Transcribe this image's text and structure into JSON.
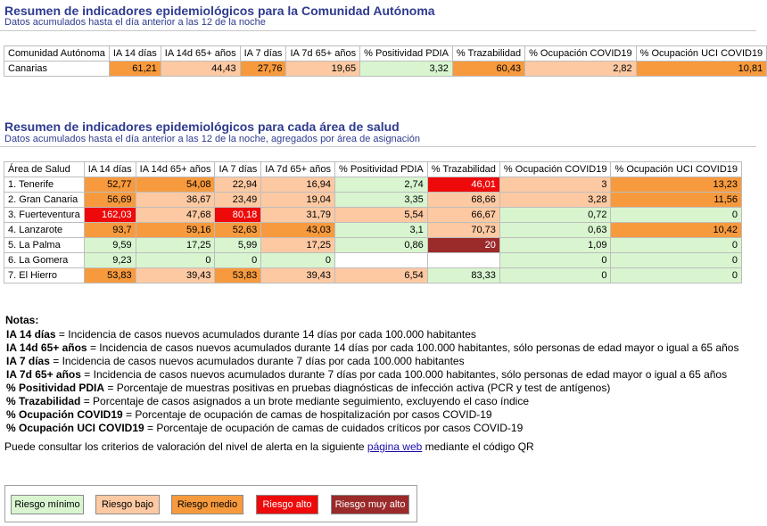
{
  "section1": {
    "title": "Resumen de indicadores epidemiológicos para la Comunidad Autónoma",
    "subtitle": "Datos acumulados hasta el día anterior a las 12 de la noche",
    "headers": [
      "Comunidad Autónoma",
      "IA 14 días",
      "IA 14d 65+ años",
      "IA 7 días",
      "IA 7d 65+ años",
      "% Positividad PDIA",
      "% Trazabilidad",
      "% Ocupación COVID19",
      "% Ocupación UCI COVID19"
    ],
    "row": {
      "name": "Canarias",
      "values": [
        "61,21",
        "44,43",
        "27,76",
        "19,65",
        "3,32",
        "60,43",
        "2,82",
        "10,81"
      ],
      "risk": [
        "medio",
        "bajo",
        "medio",
        "bajo",
        "minimo",
        "medio",
        "bajo",
        "medio"
      ]
    }
  },
  "section2": {
    "title": "Resumen de indicadores epidemiológicos para cada área de salud",
    "subtitle": "Datos acumulados hasta el día anterior a las 12 de la noche, agregados por área de asignación",
    "headers": [
      "Área de Salud",
      "IA 14 días",
      "IA 14d 65+ años",
      "IA 7 días",
      "IA 7d 65+ años",
      "% Positividad PDIA",
      "% Trazabilidad",
      "% Ocupación COVID19",
      "% Ocupación UCI COVID19"
    ],
    "rows": [
      {
        "name": "1. Tenerife",
        "values": [
          "52,77",
          "54,08",
          "22,94",
          "16,94",
          "2,74",
          "46,01",
          "3",
          "13,23"
        ],
        "risk": [
          "medio",
          "medio",
          "bajo",
          "bajo",
          "minimo",
          "alto",
          "bajo",
          "medio"
        ]
      },
      {
        "name": "2. Gran Canaria",
        "values": [
          "56,69",
          "36,67",
          "23,49",
          "19,04",
          "3,35",
          "68,66",
          "3,28",
          "11,56"
        ],
        "risk": [
          "medio",
          "bajo",
          "bajo",
          "bajo",
          "minimo",
          "bajo",
          "bajo",
          "medio"
        ]
      },
      {
        "name": "3. Fuerteventura",
        "values": [
          "162,03",
          "47,68",
          "80,18",
          "31,79",
          "5,54",
          "66,67",
          "0,72",
          "0"
        ],
        "risk": [
          "alto",
          "bajo",
          "alto",
          "bajo",
          "bajo",
          "bajo",
          "minimo",
          "minimo"
        ]
      },
      {
        "name": "4. Lanzarote",
        "values": [
          "93,7",
          "59,16",
          "52,63",
          "43,03",
          "3,1",
          "70,73",
          "0,63",
          "10,42"
        ],
        "risk": [
          "medio",
          "medio",
          "medio",
          "medio",
          "minimo",
          "bajo",
          "minimo",
          "medio"
        ]
      },
      {
        "name": "5. La Palma",
        "values": [
          "9,59",
          "17,25",
          "5,99",
          "17,25",
          "0,86",
          "20",
          "1,09",
          "0"
        ],
        "risk": [
          "minimo",
          "minimo",
          "minimo",
          "bajo",
          "minimo",
          "muyalto",
          "minimo",
          "minimo"
        ]
      },
      {
        "name": "6. La Gomera",
        "values": [
          "9,23",
          "0",
          "0",
          "0",
          "",
          "",
          "0",
          "0"
        ],
        "risk": [
          "minimo",
          "minimo",
          "minimo",
          "minimo",
          "none",
          "none",
          "minimo",
          "minimo"
        ]
      },
      {
        "name": "7. El Hierro",
        "values": [
          "53,83",
          "39,43",
          "53,83",
          "39,43",
          "6,54",
          "83,33",
          "0",
          "0"
        ],
        "risk": [
          "medio",
          "bajo",
          "medio",
          "bajo",
          "bajo",
          "minimo",
          "minimo",
          "minimo"
        ]
      }
    ]
  },
  "notes": {
    "heading": "Notas:",
    "items": [
      {
        "term": "IA 14 días",
        "desc": " = Incidencia de casos nuevos acumulados durante 14 días por cada 100.000 habitantes"
      },
      {
        "term": "IA 14d 65+ años",
        "desc": " = Incidencia de casos nuevos acumulados durante 14 días por cada 100.000 habitantes, sólo personas de edad mayor o igual a 65 años"
      },
      {
        "term": "IA 7 días",
        "desc": " = Incidencia de casos nuevos acumulados durante 7 días por cada 100.000 habitantes"
      },
      {
        "term": "IA 7d 65+ años",
        "desc": " = Incidencia de casos nuevos acumulados durante 7 días por cada 100.000 habitantes, sólo personas de edad mayor o igual a 65 años"
      },
      {
        "term": "% Positividad PDIA",
        "desc": " = Porcentaje de muestras positivas en pruebas diagnósticas de infección activa (PCR y test de antígenos)"
      },
      {
        "term": "% Trazabilidad",
        "desc": " = Porcentaje de casos asignados a un brote mediante seguimiento, excluyendo el caso índice"
      },
      {
        "term": "% Ocupación COVID19",
        "desc": " = Porcentaje de ocupación de camas de hospitalización por casos COVID-19"
      },
      {
        "term": "% Ocupación UCI COVID19",
        "desc": " = Porcentaje de ocupación de camas de cuidados críticos por casos COVID-19"
      }
    ]
  },
  "consult": {
    "before": "Puede consultar los criterios de valoración del nivel de alerta en la siguiente ",
    "link": "página web",
    "after": " mediante el código QR"
  },
  "legend": {
    "minimo": "Riesgo mínimo",
    "bajo": "Riesgo bajo",
    "medio": "Riesgo medio",
    "alto": "Riesgo alto",
    "muyalto": "Riesgo muy alto"
  },
  "colors": {
    "minimo": "#d8f5d0",
    "bajo": "#fdc9a2",
    "medio": "#f79a3d",
    "alto": "#ee0a0a",
    "muyalto": "#9b2a2a",
    "title": "#2e3b8f"
  }
}
